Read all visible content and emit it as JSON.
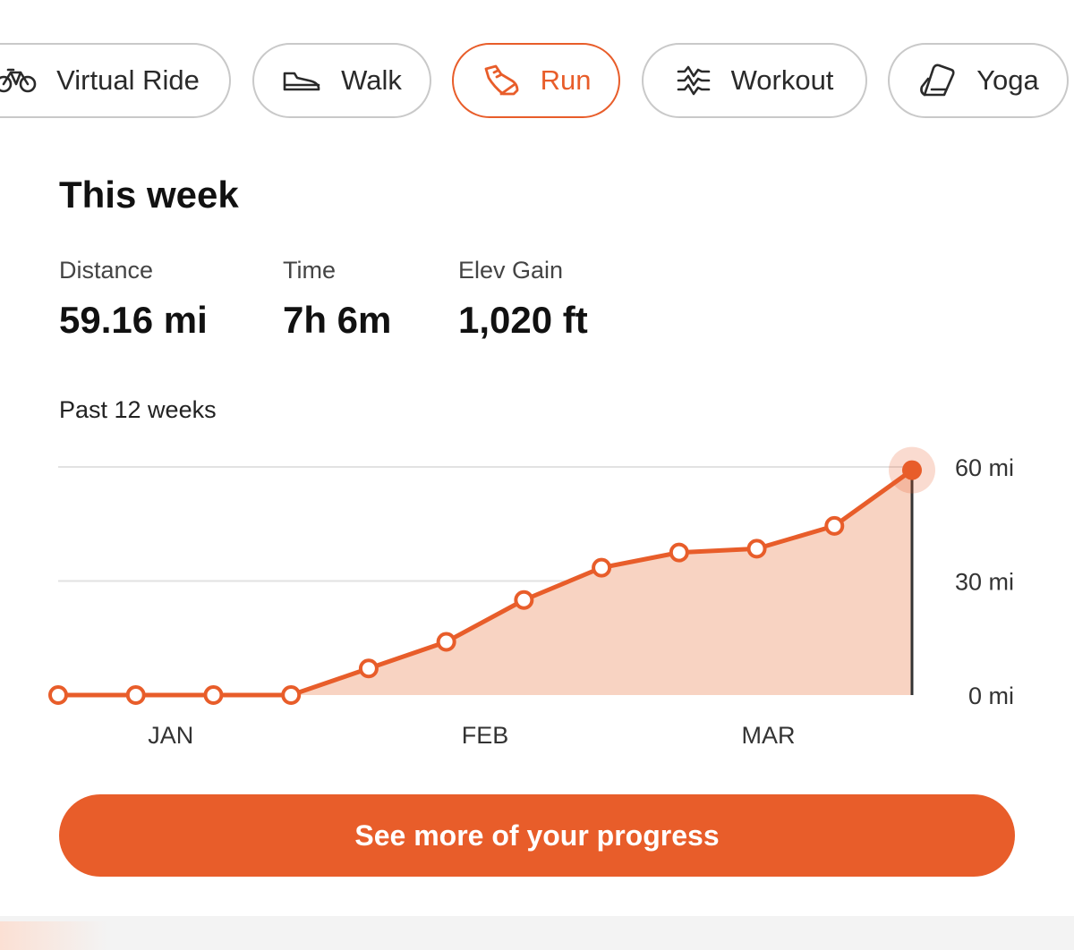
{
  "tabs": [
    {
      "label": "Virtual Ride",
      "icon": "bicycle-icon",
      "active": false
    },
    {
      "label": "Walk",
      "icon": "shoe-icon",
      "active": false
    },
    {
      "label": "Run",
      "icon": "running-shoe-icon",
      "active": true
    },
    {
      "label": "Workout",
      "icon": "workout-waves-icon",
      "active": false
    },
    {
      "label": "Yoga",
      "icon": "yoga-mat-icon",
      "active": false
    }
  ],
  "summary": {
    "title": "This week",
    "stats": [
      {
        "label": "Distance",
        "value": "59.16 mi"
      },
      {
        "label": "Time",
        "value": "7h 6m"
      },
      {
        "label": "Elev Gain",
        "value": "1,020 ft"
      }
    ]
  },
  "chart_title": "Past 12 weeks",
  "chart_data": {
    "type": "area",
    "x": [
      1,
      2,
      3,
      4,
      5,
      6,
      7,
      8,
      9,
      10,
      11,
      12
    ],
    "series": [
      {
        "values": [
          0,
          0,
          0,
          0,
          7,
          14,
          25,
          33.5,
          37.5,
          38.5,
          44.5,
          59.16
        ]
      }
    ],
    "month_labels": [
      {
        "label": "JAN",
        "at": 2.45
      },
      {
        "label": "FEB",
        "at": 6.5
      },
      {
        "label": "MAR",
        "at": 10.15
      }
    ],
    "y_ticks": [
      {
        "label": "60 mi",
        "value": 60
      },
      {
        "label": "30 mi",
        "value": 30
      },
      {
        "label": "0 mi",
        "value": 0
      }
    ],
    "ylim": [
      0,
      60
    ],
    "grid": true,
    "highlight_index": 11
  },
  "colors": {
    "accent": "#e85d2a",
    "area_fill": "#f8d3c2",
    "grid": "#e2e2e2"
  },
  "cta": {
    "label": "See more of your progress"
  }
}
